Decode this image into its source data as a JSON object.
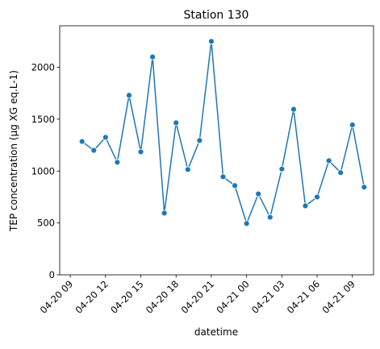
{
  "chart_data": {
    "type": "line",
    "title": "Station 130",
    "xlabel": "datetime",
    "ylabel": "TEP concentration (µg XG eq.L-1)",
    "x_ticks": [
      "04-20 09",
      "04-20 12",
      "04-20 15",
      "04-20 18",
      "04-20 21",
      "04-21 00",
      "04-21 03",
      "04-21 06",
      "04-21 09"
    ],
    "y_ticks": [
      0,
      500,
      1000,
      1500,
      2000
    ],
    "xlim": [
      "2024-04-20T08:06",
      "2024-04-21T10:48"
    ],
    "ylim": [
      0,
      2400
    ],
    "grid": false,
    "legend": false,
    "series": [
      {
        "color": "#1f77b4",
        "marker": "circle",
        "points": [
          {
            "x": "2024-04-20T10:00",
            "y": 1285
          },
          {
            "x": "2024-04-20T11:00",
            "y": 1200
          },
          {
            "x": "2024-04-20T12:00",
            "y": 1325
          },
          {
            "x": "2024-04-20T13:00",
            "y": 1085
          },
          {
            "x": "2024-04-20T14:00",
            "y": 1730
          },
          {
            "x": "2024-04-20T15:00",
            "y": 1185
          },
          {
            "x": "2024-04-20T16:00",
            "y": 2100
          },
          {
            "x": "2024-04-20T17:00",
            "y": 595
          },
          {
            "x": "2024-04-20T18:00",
            "y": 1465
          },
          {
            "x": "2024-04-20T19:00",
            "y": 1015
          },
          {
            "x": "2024-04-20T20:00",
            "y": 1295
          },
          {
            "x": "2024-04-20T21:00",
            "y": 2250
          },
          {
            "x": "2024-04-20T22:00",
            "y": 945
          },
          {
            "x": "2024-04-20T23:00",
            "y": 860
          },
          {
            "x": "2024-04-21T00:00",
            "y": 495
          },
          {
            "x": "2024-04-21T01:00",
            "y": 780
          },
          {
            "x": "2024-04-21T02:00",
            "y": 555
          },
          {
            "x": "2024-04-21T03:00",
            "y": 1020
          },
          {
            "x": "2024-04-21T04:00",
            "y": 1595
          },
          {
            "x": "2024-04-21T05:00",
            "y": 665
          },
          {
            "x": "2024-04-21T06:00",
            "y": 750
          },
          {
            "x": "2024-04-21T07:00",
            "y": 1100
          },
          {
            "x": "2024-04-21T08:00",
            "y": 985
          },
          {
            "x": "2024-04-21T09:00",
            "y": 1445
          },
          {
            "x": "2024-04-21T10:00",
            "y": 845
          }
        ]
      }
    ]
  }
}
